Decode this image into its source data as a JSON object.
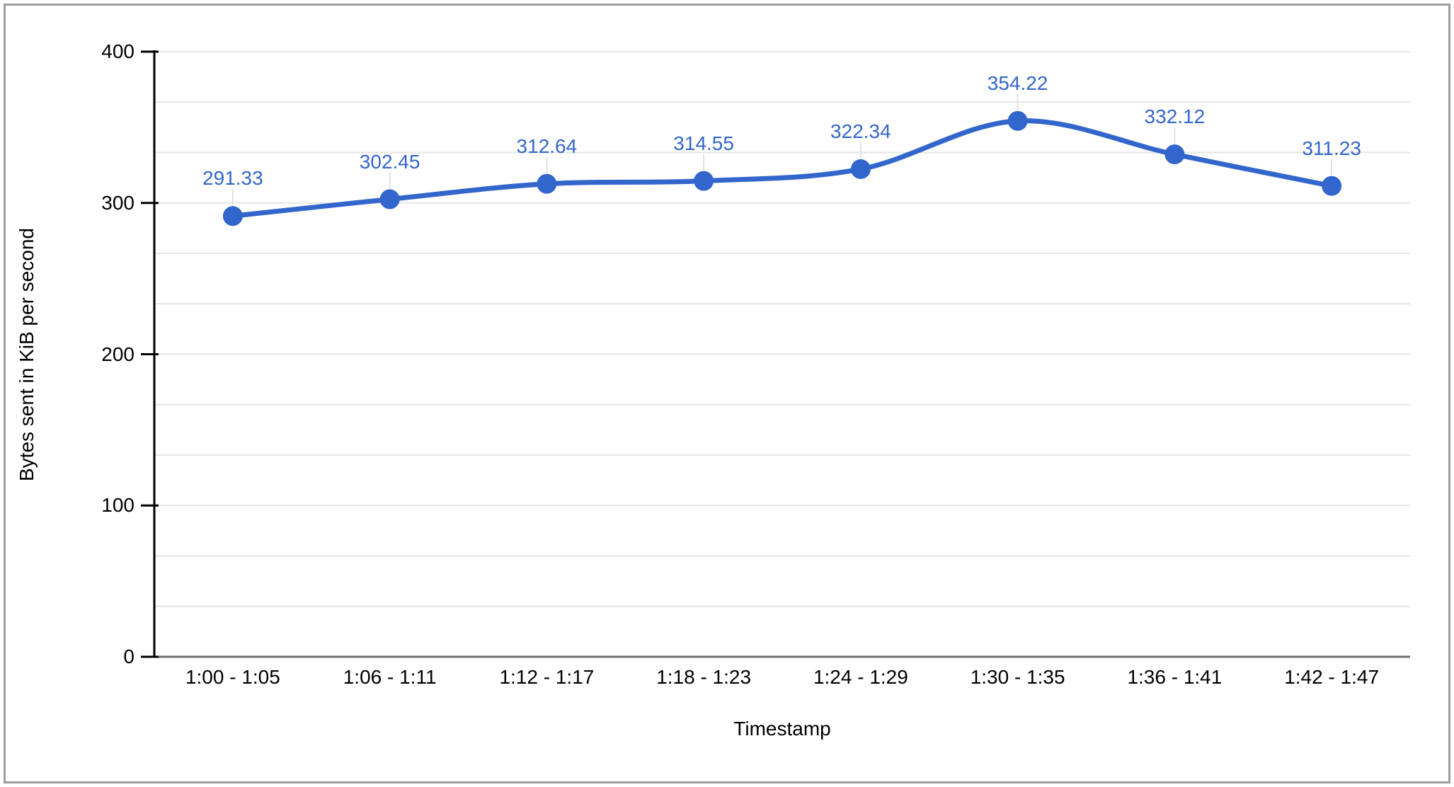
{
  "chart_data": {
    "type": "line",
    "xlabel": "Timestamp",
    "ylabel": "Bytes sent in KiB per second",
    "categories": [
      "1:00 - 1:05",
      "1:06 - 1:11",
      "1:12 - 1:17",
      "1:18 - 1:23",
      "1:24 - 1:29",
      "1:30 - 1:35",
      "1:36 - 1:41",
      "1:42 - 1:47"
    ],
    "series": [
      {
        "name": "Bytes sent in KiB per second",
        "values": [
          291.33,
          302.45,
          312.64,
          314.55,
          322.34,
          354.22,
          332.12,
          311.23
        ],
        "point_labels": [
          "291.33",
          "302.45",
          "312.64",
          "314.55",
          "322.34",
          "354.22",
          "332.12",
          "311.23"
        ]
      }
    ],
    "ylim": [
      0,
      400
    ],
    "yticks": [
      0,
      100,
      200,
      300,
      400
    ],
    "ytick_labels": [
      "0",
      "100",
      "200",
      "300",
      "400"
    ],
    "minor_gridlines_per_major": 2,
    "grid": "horizontal-only",
    "smooth": true,
    "legend_position": "none",
    "colors": {
      "series": "#3366cc",
      "data_label": "#3366cc",
      "gridline": "#e6e6e6",
      "baseline": "#6e6e6e",
      "axis_line": "#000000",
      "axis_text": "#000000",
      "label_connector": "#e0e0e0",
      "background": "#ffffff",
      "border": "#9e9e9e"
    }
  }
}
